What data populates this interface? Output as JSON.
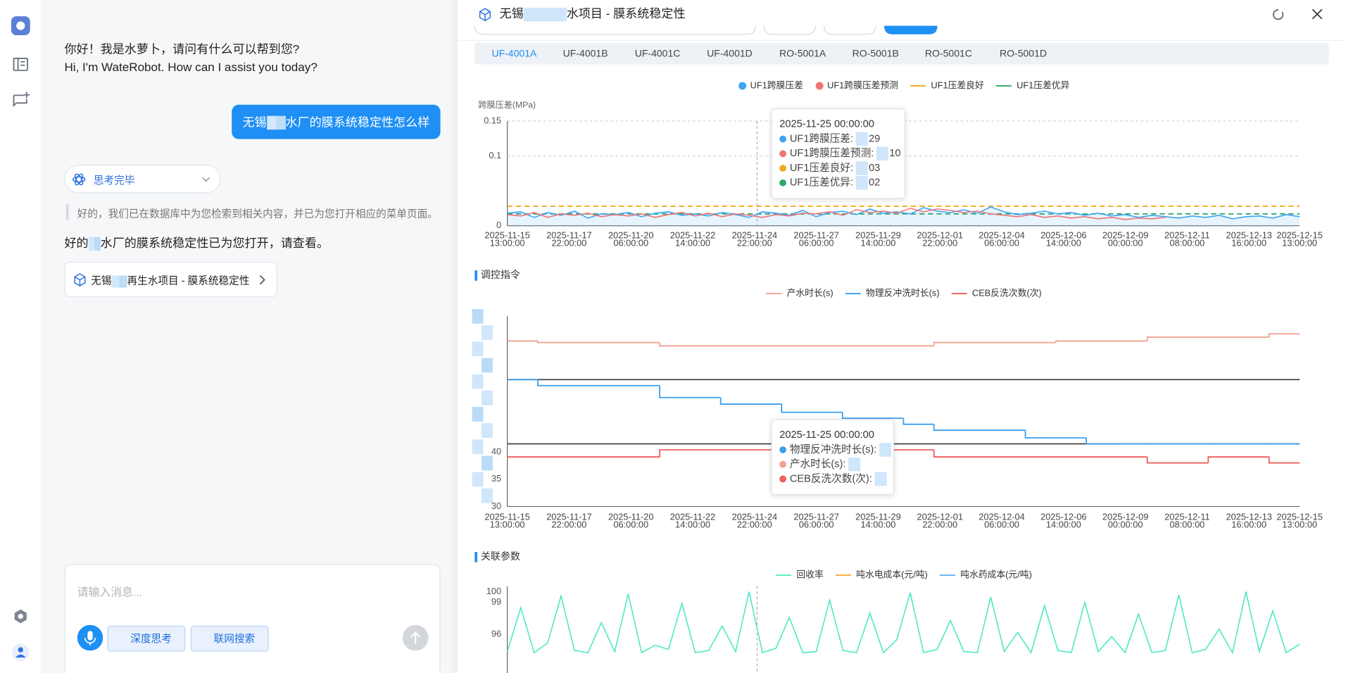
{
  "chat": {
    "greeting": [
      "你好！我是水萝卜，请问有什么可以帮到您?",
      "Hi, I'm WateRobot. How can I assist you today?"
    ],
    "user_message": [
      "无锡",
      "水厂的膜系统稳定性怎么样"
    ],
    "thinking_status": "思考完毕",
    "retrieval_note": "好的，我们已在数据库中为您检索到相关内容，并已为您打开相应的菜单页面。",
    "reply": [
      "好的",
      "水厂的膜系统稳定性已为您打开，请查看。"
    ],
    "link_card": [
      "无锡",
      "再生水项目 - 膜系统稳定性"
    ],
    "input_placeholder": "请输入消息...",
    "buttons": [
      "深度思考",
      "联网搜索"
    ]
  },
  "panel": {
    "title": [
      "无锡",
      "水项目 - 膜系统稳定性"
    ],
    "tabs": [
      "UF-4001A",
      "UF-4001B",
      "UF-4001C",
      "UF-4001D",
      "RO-5001A",
      "RO-5001B",
      "RO-5001C",
      "RO-5001D"
    ],
    "active_tab": 0
  },
  "chart_data": [
    {
      "type": "line",
      "y_label": "跨膜压差(MPa)",
      "ylim": [
        0,
        0.15
      ],
      "yticks": [
        0,
        0.1,
        0.15
      ],
      "grid": true,
      "x_tick_labels": [
        [
          "2025-11-15",
          "13:00:00"
        ],
        [
          "2025-11-17",
          "22:00:00"
        ],
        [
          "2025-11-20",
          "06:00:00"
        ],
        [
          "2025-11-22",
          "14:00:00"
        ],
        [
          "2025-11-24",
          "22:00:00"
        ],
        [
          "2025-11-27",
          "06:00:00"
        ],
        [
          "2025-11-29",
          "14:00:00"
        ],
        [
          "2025-12-01",
          "22:00:00"
        ],
        [
          "2025-12-04",
          "06:00:00"
        ],
        [
          "2025-12-06",
          "14:00:00"
        ],
        [
          "2025-12-09",
          "00:00:00"
        ],
        [
          "2025-12-11",
          "08:00:00"
        ],
        [
          "2025-12-13",
          "16:00:00"
        ],
        [
          "2025-12-15",
          "13:00:00"
        ]
      ],
      "series": [
        {
          "name": "UF1跨膜压差",
          "color": "#3ba4f4",
          "legend_marker": "circle",
          "area": true,
          "values": [
            0.018,
            0.02,
            0.012,
            0.019,
            0.015,
            0.021,
            0.011,
            0.017,
            0.016,
            0.019,
            0.013,
            0.018,
            0.02,
            0.015,
            0.017,
            0.014,
            0.019,
            0.016,
            0.012,
            0.02,
            0.018,
            0.015,
            0.022,
            0.013,
            0.019,
            0.021,
            0.016,
            0.024,
            0.018,
            0.02,
            0.017,
            0.026,
            0.021,
            0.019,
            0.023,
            0.018,
            0.027,
            0.02,
            0.016,
            0.018,
            0.021,
            0.017,
            0.019,
            0.015,
            0.018,
            0.014,
            0.016,
            0.012,
            0.015,
            0.013,
            0.011,
            0.014,
            0.012,
            0.015,
            0.01,
            0.013,
            0.014,
            0.011,
            0.016,
            0.013
          ]
        },
        {
          "name": "UF1跨膜压差预测",
          "color": "#f07474",
          "legend_marker": "circle",
          "values": [
            0.016,
            0.014,
            0.019,
            0.012,
            0.017,
            0.015,
            0.018,
            0.013,
            0.016,
            0.014,
            0.017,
            0.012,
            0.016,
            0.019,
            0.014,
            0.018,
            0.013,
            0.017,
            0.015,
            0.012,
            0.016,
            0.014,
            0.018,
            0.017,
            0.02,
            0.015,
            0.023,
            0.019,
            0.021,
            0.018,
            0.025,
            0.02,
            0.024,
            0.022,
            0.019,
            0.021,
            0.017,
            0.015,
            0.013,
            0.016,
            0.012,
            0.014,
            0.011,
            0.013,
            0.01,
            0.012,
            0.009,
            0.011,
            0.01,
            0.012,
            null,
            null,
            null,
            null,
            null,
            null,
            null,
            null,
            null,
            null
          ]
        }
      ],
      "reference_lines": [
        {
          "name": "UF1压差良好",
          "color": "#f5a623",
          "value": 0.028
        },
        {
          "name": "UF1压差优异",
          "color": "#2ea86b",
          "value": 0.017
        }
      ],
      "tooltip": {
        "title": "2025-11-25 00:00:00",
        "rows": [
          {
            "label": "UF1跨膜压差:",
            "color": "#3ba4f4"
          },
          {
            "label": "UF1跨膜压差预测:",
            "color": "#f07474"
          },
          {
            "label": "UF1压差良好:",
            "color": "#f5a623"
          },
          {
            "label": "UF1压差优异:",
            "color": "#2ea86b"
          }
        ],
        "fragments": [
          "29",
          "10",
          "03",
          "02"
        ]
      }
    },
    {
      "type": "step",
      "section_title": "调控指令",
      "ylim": [
        30,
        65
      ],
      "yticks": [
        30,
        35,
        40
      ],
      "grid": false,
      "series": [
        {
          "name": "产水时长(s)",
          "color": "#f4a090",
          "values": [
            60.4,
            60.1,
            60.1,
            60.1,
            60.1,
            59.5,
            59.5,
            59.5,
            59.5,
            59.5,
            59.5,
            59.5,
            59.5,
            59.5,
            60.1,
            60.1,
            60.1,
            60.1,
            60.4,
            60.4,
            60.4,
            61.1,
            61.1,
            61.1,
            61.1,
            61.7
          ]
        },
        {
          "name": "物理反冲洗时长(s)",
          "color": "#3a9ff0",
          "values": [
            53.3,
            52.2,
            52.2,
            52.2,
            52.2,
            50.0,
            50.0,
            48.8,
            48.8,
            47.3,
            47.3,
            46.2,
            46.2,
            45.1,
            44.0,
            44.0,
            44.0,
            42.6,
            42.6,
            41.5,
            41.5,
            41.5,
            41.5,
            41.5,
            41.5,
            41.5
          ]
        },
        {
          "name": "CEB反洗次数(次)",
          "color": "#ef5d5d",
          "values": [
            39.1,
            39.1,
            39.1,
            39.1,
            39.1,
            40.4,
            40.4,
            40.4,
            40.4,
            40.4,
            40.4,
            40.4,
            40.4,
            40.4,
            39.1,
            39.1,
            39.1,
            39.1,
            39.1,
            39.1,
            39.1,
            38.0,
            38.0,
            39.1,
            39.1,
            38.0
          ]
        }
      ],
      "reference_lines": [
        {
          "color": "#444444",
          "value": 53.3
        },
        {
          "color": "#444444",
          "value": 41.5
        }
      ],
      "tooltip": {
        "title": "2025-11-25 00:00:00",
        "rows": [
          {
            "label": "物理反冲洗时长(s):",
            "color": "#3a9ff0"
          },
          {
            "label": "产水时长(s):",
            "color": "#f4a090"
          },
          {
            "label": "CEB反洗次数(次):",
            "color": "#ef5d5d"
          }
        ]
      }
    },
    {
      "type": "line",
      "section_title": "关联参数",
      "ylim": [
        92,
        100.5
      ],
      "yticks": [
        96,
        99,
        100
      ],
      "grid": false,
      "series": [
        {
          "name": "回收率",
          "color": "#4de8c4",
          "values": [
            94.4,
            98.5,
            94.3,
            95.2,
            99.6,
            94.5,
            94.3,
            97.1,
            94.4,
            99.8,
            94.3,
            95.0,
            94.6,
            98.9,
            94.3,
            94.5,
            96.8,
            94.4,
            100,
            94.3,
            94.7,
            97.6,
            94.3,
            94.4,
            99.2,
            94.5,
            94.3,
            98.0,
            94.3,
            95.5,
            99.9,
            94.3,
            94.6,
            97.3,
            94.4,
            94.3,
            99.5,
            94.4,
            96.2,
            94.3,
            98.7,
            94.5,
            94.3,
            99.0,
            94.4,
            95.8,
            94.3,
            97.9,
            94.3,
            94.5,
            99.7,
            94.3,
            94.6,
            96.5,
            94.3,
            100,
            94.4,
            98.2,
            94.3,
            95.1
          ]
        },
        {
          "name": "吨水电成本(元/吨)",
          "color": "#f5a623",
          "values": []
        },
        {
          "name": "吨水药成本(元/吨)",
          "color": "#5aaaf0",
          "values": []
        }
      ]
    }
  ]
}
